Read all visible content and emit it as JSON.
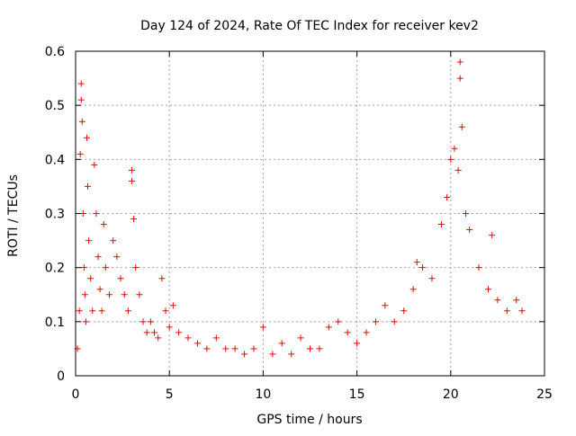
{
  "chart_data": {
    "type": "scatter",
    "title": "Day 124 of 2024, Rate Of TEC Index for receiver kev2",
    "xlabel": "GPS time / hours",
    "ylabel": "ROTI / TECUs",
    "xlim": [
      0,
      25
    ],
    "ylim": [
      0,
      0.6
    ],
    "xticks": [
      "0",
      "5",
      "10",
      "15",
      "20",
      "25"
    ],
    "yticks": [
      "0",
      "0.1",
      "0.2",
      "0.3",
      "0.4",
      "0.5",
      "0.6"
    ],
    "grid": true,
    "marker": "plus",
    "marker_color": "#ff0000",
    "series": [
      {
        "name": "kev2",
        "x": [
          0.1,
          0.2,
          0.25,
          0.3,
          0.3,
          0.35,
          0.4,
          0.45,
          0.5,
          0.55,
          0.6,
          0.65,
          0.7,
          0.8,
          0.9,
          1.0,
          1.1,
          1.2,
          1.3,
          1.4,
          1.5,
          1.6,
          1.8,
          2.0,
          2.2,
          2.4,
          2.6,
          2.8,
          3.0,
          3.0,
          3.1,
          3.2,
          3.4,
          3.6,
          3.8,
          4.0,
          4.2,
          4.4,
          4.6,
          4.8,
          5.0,
          5.2,
          5.5,
          6.0,
          6.5,
          7.0,
          7.5,
          8.0,
          8.5,
          9.0,
          9.5,
          10.0,
          10.5,
          11.0,
          11.5,
          12.0,
          12.5,
          13.0,
          13.5,
          14.0,
          14.5,
          15.0,
          15.5,
          16.0,
          16.5,
          17.0,
          17.5,
          18.0,
          18.2,
          18.5,
          19.0,
          19.5,
          19.8,
          20.0,
          20.2,
          20.4,
          20.5,
          20.5,
          20.6,
          20.8,
          21.0,
          21.5,
          22.0,
          22.2,
          22.5,
          23.0,
          23.5,
          23.8
        ],
        "y": [
          0.05,
          0.12,
          0.41,
          0.51,
          0.54,
          0.47,
          0.3,
          0.2,
          0.15,
          0.1,
          0.44,
          0.35,
          0.25,
          0.18,
          0.12,
          0.39,
          0.3,
          0.22,
          0.16,
          0.12,
          0.28,
          0.2,
          0.15,
          0.25,
          0.22,
          0.18,
          0.15,
          0.12,
          0.38,
          0.36,
          0.29,
          0.2,
          0.15,
          0.1,
          0.08,
          0.1,
          0.08,
          0.07,
          0.18,
          0.12,
          0.09,
          0.13,
          0.08,
          0.07,
          0.06,
          0.05,
          0.07,
          0.05,
          0.05,
          0.04,
          0.05,
          0.09,
          0.04,
          0.06,
          0.04,
          0.07,
          0.05,
          0.05,
          0.09,
          0.1,
          0.08,
          0.06,
          0.08,
          0.1,
          0.13,
          0.1,
          0.12,
          0.16,
          0.21,
          0.2,
          0.18,
          0.28,
          0.33,
          0.4,
          0.42,
          0.38,
          0.58,
          0.55,
          0.46,
          0.3,
          0.27,
          0.2,
          0.16,
          0.26,
          0.14,
          0.12,
          0.14,
          0.12
        ]
      }
    ]
  }
}
